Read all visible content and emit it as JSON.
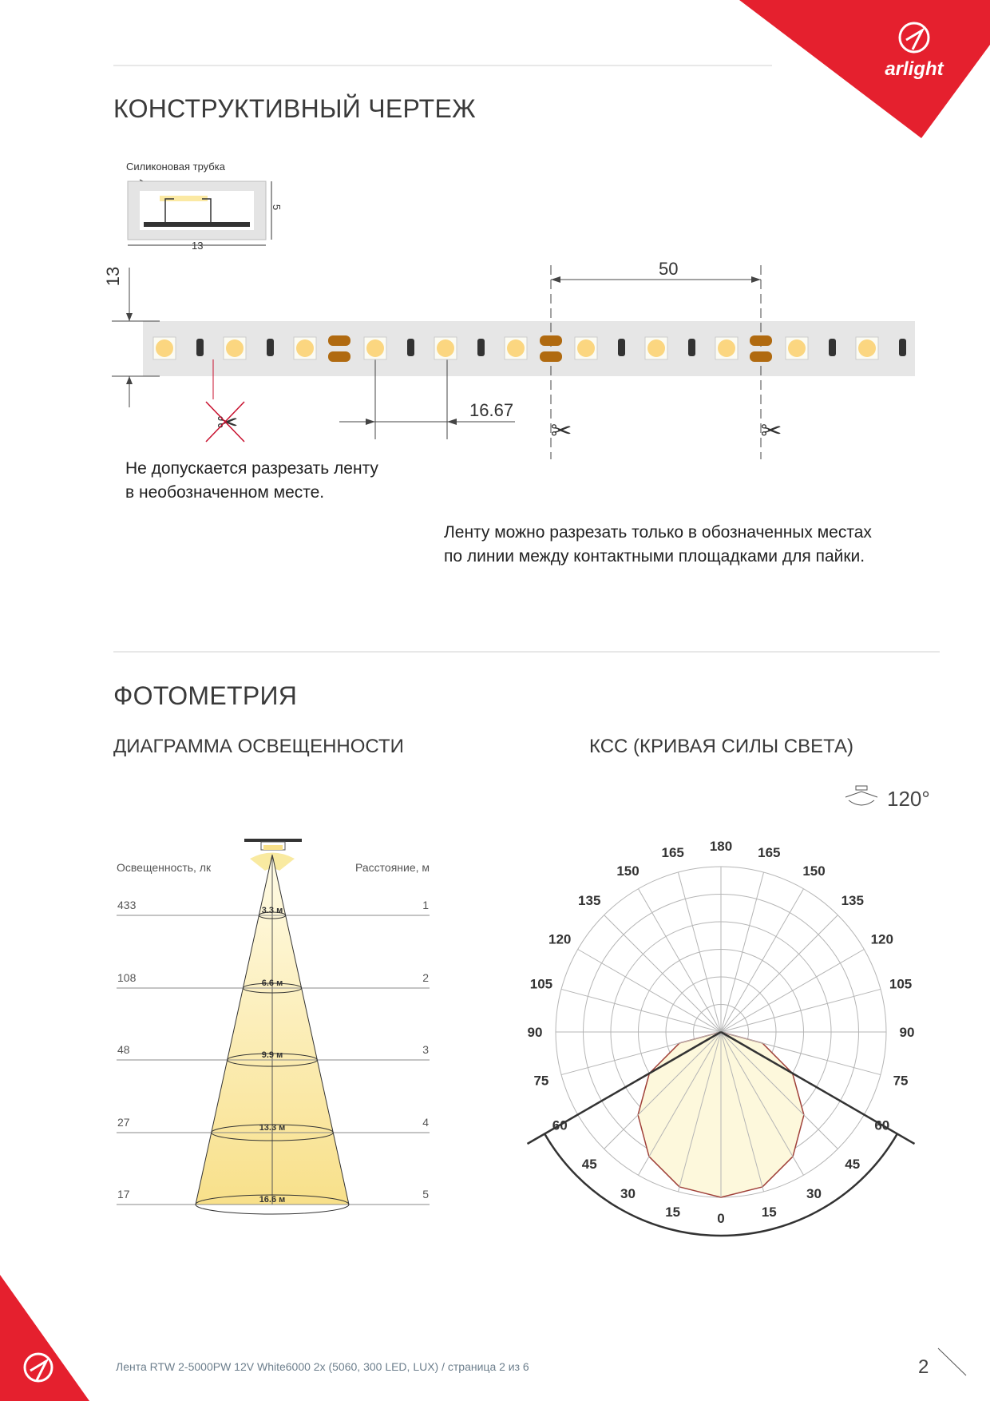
{
  "brand": {
    "logo_text": "arlight",
    "color": "#e5202e"
  },
  "section1": {
    "title": "КОНСТРУКТИВНЫЙ ЧЕРТЕЖ",
    "cross_section": {
      "label": "Силиконовая трубка",
      "width": "13",
      "height": "5"
    },
    "strip": {
      "height_dim": "13",
      "segment_dim": "50",
      "led_pitch_dim": "16.67"
    },
    "note_forbidden": [
      "Не допускается разрезать ленту",
      "в необозначенном месте."
    ],
    "note_allowed": [
      "Ленту можно разрезать только в обозначенных местах",
      "по линии между контактными площадками для пайки."
    ]
  },
  "section2": {
    "title": "ФОТОМЕТРИЯ",
    "illuminance_title": "ДИАГРАММА ОСВЕЩЕННОСТИ",
    "ksс_title": "КСС (КРИВАЯ СИЛЫ СВЕТА)",
    "beam_angle": "120°"
  },
  "chart_data": [
    {
      "type": "table",
      "header_left": "Освещенность, лк",
      "header_right": "Расстояние, м",
      "rows": [
        {
          "lux": "433",
          "diameter": "3.3 м",
          "distance": "1"
        },
        {
          "lux": "108",
          "diameter": "6.6 м",
          "distance": "2"
        },
        {
          "lux": "48",
          "diameter": "9.9 м",
          "distance": "3"
        },
        {
          "lux": "27",
          "diameter": "13.3 м",
          "distance": "4"
        },
        {
          "lux": "17",
          "diameter": "16.6 м",
          "distance": "5"
        }
      ]
    },
    {
      "type": "polar",
      "angle_labels": [
        "0",
        "15",
        "30",
        "45",
        "60",
        "75",
        "90",
        "105",
        "120",
        "135",
        "150",
        "165",
        "180"
      ],
      "beam_angle_deg": 120,
      "curve": {
        "angles": [
          0,
          15,
          30,
          45,
          60,
          75,
          90
        ],
        "relative_intensity": [
          1.0,
          0.97,
          0.87,
          0.71,
          0.5,
          0.26,
          0.0
        ]
      },
      "colors": {
        "fill": "#fdf8dc",
        "curve": "#a0413a",
        "grid": "#b5b5b5"
      }
    }
  ],
  "footer": {
    "text": "Лента RTW 2-5000PW 12V White6000 2x (5060, 300 LED, LUX) / страница 2 из 6",
    "page": "2"
  }
}
